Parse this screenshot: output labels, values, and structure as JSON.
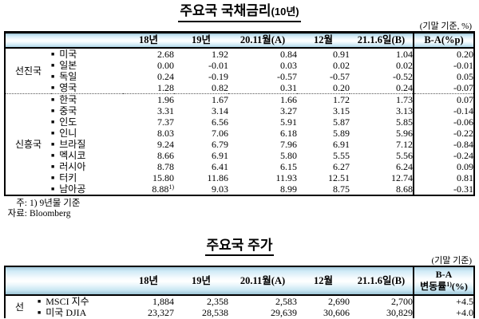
{
  "glyphs": {
    "bullet": "■"
  },
  "table1": {
    "title_main": "주요국 국채금리",
    "title_paren": "(10년)",
    "unit_note": "(기말 기준, %)",
    "columns": [
      "18년",
      "19년",
      "20.11월(A)",
      "12월",
      "21.1.6일(B)",
      "B-A(%p)"
    ],
    "groups": [
      {
        "label": "선진국",
        "rows": [
          {
            "country": "미국",
            "values": [
              "2.68",
              "1.92",
              "0.84",
              "0.91",
              "1.04"
            ],
            "ba": "0.20"
          },
          {
            "country": "일본",
            "values": [
              "0.00",
              "-0.01",
              "0.03",
              "0.02",
              "0.02"
            ],
            "ba": "-0.01"
          },
          {
            "country": "독일",
            "values": [
              "0.24",
              "-0.19",
              "-0.57",
              "-0.57",
              "-0.52"
            ],
            "ba": "0.05"
          },
          {
            "country": "영국",
            "values": [
              "1.28",
              "0.82",
              "0.31",
              "0.20",
              "0.24"
            ],
            "ba": "-0.07"
          }
        ]
      },
      {
        "label": "신흥국",
        "rows": [
          {
            "country": "한국",
            "values": [
              "1.96",
              "1.67",
              "1.66",
              "1.72",
              "1.73"
            ],
            "ba": "0.07"
          },
          {
            "country": "중국",
            "values": [
              "3.31",
              "3.14",
              "3.27",
              "3.15",
              "3.13"
            ],
            "ba": "-0.14"
          },
          {
            "country": "인도",
            "values": [
              "7.37",
              "6.56",
              "5.91",
              "5.87",
              "5.85"
            ],
            "ba": "-0.06"
          },
          {
            "country": "인니",
            "values": [
              "8.03",
              "7.06",
              "6.18",
              "5.89",
              "5.96"
            ],
            "ba": "-0.22"
          },
          {
            "country": "브라질",
            "values": [
              "9.24",
              "6.79",
              "7.96",
              "6.91",
              "7.12"
            ],
            "ba": "-0.84"
          },
          {
            "country": "멕시코",
            "values": [
              "8.66",
              "6.91",
              "5.80",
              "5.55",
              "5.56"
            ],
            "ba": "-0.24"
          },
          {
            "country": "러시아",
            "values": [
              "8.78",
              "6.41",
              "6.15",
              "6.27",
              "6.24"
            ],
            "ba": "0.09"
          },
          {
            "country": "터키",
            "values": [
              "15.80",
              "11.86",
              "11.93",
              "12.51",
              "12.74"
            ],
            "ba": "0.81"
          },
          {
            "country": "남아공",
            "values": [
              "8.88",
              "9.03",
              "8.99",
              "8.75",
              "8.68"
            ],
            "value0_sup": "1)",
            "ba": "-0.31"
          }
        ]
      }
    ],
    "footnotes": [
      {
        "label": "주:",
        "text": "1) 9년물 기준"
      },
      {
        "label": "자료:",
        "text": "Bloomberg"
      }
    ]
  },
  "table2": {
    "title": "주요국 주가",
    "unit_note": "(기말 기준)",
    "columns": [
      "18년",
      "19년",
      "20.11월(A)",
      "12월",
      "21.1.6일(B)"
    ],
    "ba_header": {
      "line1": "B-A",
      "line2_pre": "변동률",
      "line2_sup": "1)",
      "line2_post": "(%)"
    },
    "group_label": "선",
    "rows": [
      {
        "name": "MSCI 지수",
        "values": [
          "1,884",
          "2,358",
          "2,583",
          "2,690",
          "2,700"
        ],
        "ba": "+4.5"
      },
      {
        "name": "미국 DJIA",
        "values": [
          "23,327",
          "28,538",
          "29,639",
          "30,606",
          "30,829"
        ],
        "ba": "+4.0"
      }
    ]
  }
}
